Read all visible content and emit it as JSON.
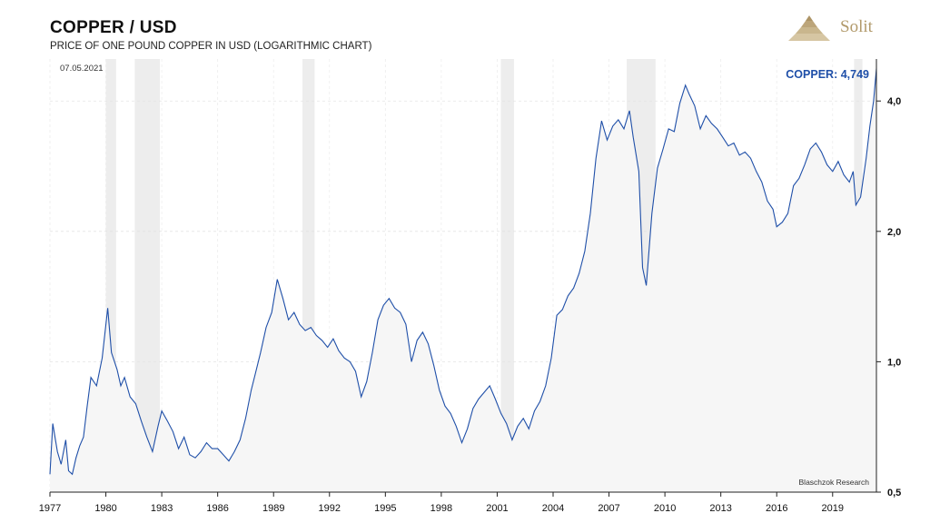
{
  "header": {
    "title": "COPPER / USD",
    "subtitle": "PRICE OF ONE POUND COPPER IN USD (LOGARITHMIC CHART)",
    "date": "07.05.2021",
    "brand": "Solit"
  },
  "chart_data": {
    "type": "line",
    "title": "COPPER / USD",
    "subtitle": "PRICE OF ONE POUND COPPER IN USD (LOGARITHMIC CHART)",
    "y_scale": "log",
    "ylim": [
      0.5,
      5.0
    ],
    "xlim": [
      1977.0,
      2021.35
    ],
    "y_ticks": [
      0.5,
      1.0,
      2.0,
      4.0
    ],
    "y_tick_labels": [
      "0,5",
      "1,0",
      "2,0",
      "4,0"
    ],
    "x_ticks": [
      1977,
      1980,
      1983,
      1986,
      1989,
      1992,
      1995,
      1998,
      2001,
      2004,
      2007,
      2010,
      2013,
      2016,
      2019
    ],
    "x_tick_labels": [
      "1977",
      "1980",
      "1983",
      "1986",
      "1989",
      "1992",
      "1995",
      "1998",
      "2001",
      "2004",
      "2007",
      "2010",
      "2013",
      "2016",
      "2019"
    ],
    "grid": true,
    "y_axis_side": "right",
    "annotation_last": "COPPER: 4,749",
    "source": "Blaschzok Research",
    "line_color": "#1f4fa8",
    "recession_color": "#ededed",
    "recessions": [
      [
        1980.0,
        1980.55
      ],
      [
        1981.55,
        1982.9
      ],
      [
        1990.55,
        1991.2
      ],
      [
        2001.2,
        2001.9
      ],
      [
        2007.95,
        2009.5
      ],
      [
        2020.15,
        2020.6
      ]
    ],
    "series": [
      {
        "x": [
          1977.0,
          1977.15,
          1977.4,
          1977.6,
          1977.85,
          1978.0,
          1978.2,
          1978.4,
          1978.6,
          1978.8,
          1979.0,
          1979.2,
          1979.5,
          1979.8,
          1980.1,
          1980.3,
          1980.6,
          1980.8,
          1981.0,
          1981.3,
          1981.6,
          1981.9,
          1982.2,
          1982.5,
          1982.8,
          1983.0,
          1983.3,
          1983.6,
          1983.9,
          1984.2,
          1984.5,
          1984.8,
          1985.1,
          1985.4,
          1985.7,
          1986.0,
          1986.3,
          1986.6,
          1986.9,
          1987.2,
          1987.5,
          1987.8,
          1988.0,
          1988.3,
          1988.6,
          1988.9,
          1989.2,
          1989.5,
          1989.8,
          1990.1,
          1990.4,
          1990.7,
          1991.0,
          1991.3,
          1991.6,
          1991.9,
          1992.2,
          1992.5,
          1992.8,
          1993.1,
          1993.4,
          1993.7,
          1994.0,
          1994.3,
          1994.6,
          1994.9,
          1995.2,
          1995.5,
          1995.8,
          1996.1,
          1996.4,
          1996.7,
          1997.0,
          1997.3,
          1997.6,
          1997.9,
          1998.2,
          1998.5,
          1998.8,
          1999.1,
          1999.4,
          1999.7,
          2000.0,
          2000.3,
          2000.6,
          2000.9,
          2001.2,
          2001.5,
          2001.8,
          2002.1,
          2002.4,
          2002.7,
          2003.0,
          2003.3,
          2003.6,
          2003.9,
          2004.2,
          2004.5,
          2004.8,
          2005.1,
          2005.4,
          2005.7,
          2006.0,
          2006.3,
          2006.6,
          2006.9,
          2007.2,
          2007.5,
          2007.8,
          2008.1,
          2008.3,
          2008.6,
          2008.8,
          2009.0,
          2009.3,
          2009.6,
          2009.9,
          2010.2,
          2010.5,
          2010.8,
          2011.1,
          2011.3,
          2011.6,
          2011.9,
          2012.2,
          2012.5,
          2012.8,
          2013.1,
          2013.4,
          2013.7,
          2014.0,
          2014.3,
          2014.6,
          2014.9,
          2015.2,
          2015.5,
          2015.8,
          2016.0,
          2016.3,
          2016.6,
          2016.9,
          2017.2,
          2017.5,
          2017.8,
          2018.1,
          2018.4,
          2018.7,
          2019.0,
          2019.3,
          2019.6,
          2019.9,
          2020.1,
          2020.25,
          2020.5,
          2020.8,
          2021.0,
          2021.2,
          2021.35
        ],
        "y": [
          0.55,
          0.72,
          0.62,
          0.58,
          0.66,
          0.56,
          0.55,
          0.6,
          0.64,
          0.67,
          0.79,
          0.92,
          0.88,
          1.02,
          1.33,
          1.05,
          0.96,
          0.88,
          0.92,
          0.83,
          0.8,
          0.73,
          0.67,
          0.62,
          0.71,
          0.77,
          0.73,
          0.69,
          0.63,
          0.67,
          0.61,
          0.6,
          0.62,
          0.65,
          0.63,
          0.63,
          0.61,
          0.59,
          0.62,
          0.66,
          0.74,
          0.86,
          0.93,
          1.05,
          1.2,
          1.3,
          1.55,
          1.4,
          1.25,
          1.3,
          1.22,
          1.18,
          1.2,
          1.15,
          1.12,
          1.08,
          1.13,
          1.06,
          1.02,
          1.0,
          0.95,
          0.83,
          0.9,
          1.05,
          1.25,
          1.35,
          1.4,
          1.33,
          1.3,
          1.22,
          1.0,
          1.12,
          1.17,
          1.1,
          0.98,
          0.86,
          0.79,
          0.76,
          0.71,
          0.65,
          0.7,
          0.78,
          0.82,
          0.85,
          0.88,
          0.82,
          0.76,
          0.72,
          0.66,
          0.71,
          0.74,
          0.7,
          0.77,
          0.81,
          0.88,
          1.02,
          1.28,
          1.32,
          1.42,
          1.48,
          1.6,
          1.8,
          2.2,
          2.95,
          3.6,
          3.25,
          3.5,
          3.62,
          3.45,
          3.8,
          3.3,
          2.75,
          1.65,
          1.5,
          2.2,
          2.8,
          3.1,
          3.45,
          3.4,
          3.95,
          4.35,
          4.15,
          3.9,
          3.45,
          3.7,
          3.55,
          3.45,
          3.3,
          3.15,
          3.2,
          3.0,
          3.05,
          2.95,
          2.75,
          2.6,
          2.35,
          2.25,
          2.05,
          2.1,
          2.2,
          2.55,
          2.65,
          2.85,
          3.1,
          3.2,
          3.05,
          2.85,
          2.75,
          2.9,
          2.7,
          2.6,
          2.75,
          2.3,
          2.4,
          2.95,
          3.5,
          4.0,
          4.749
        ]
      }
    ]
  }
}
